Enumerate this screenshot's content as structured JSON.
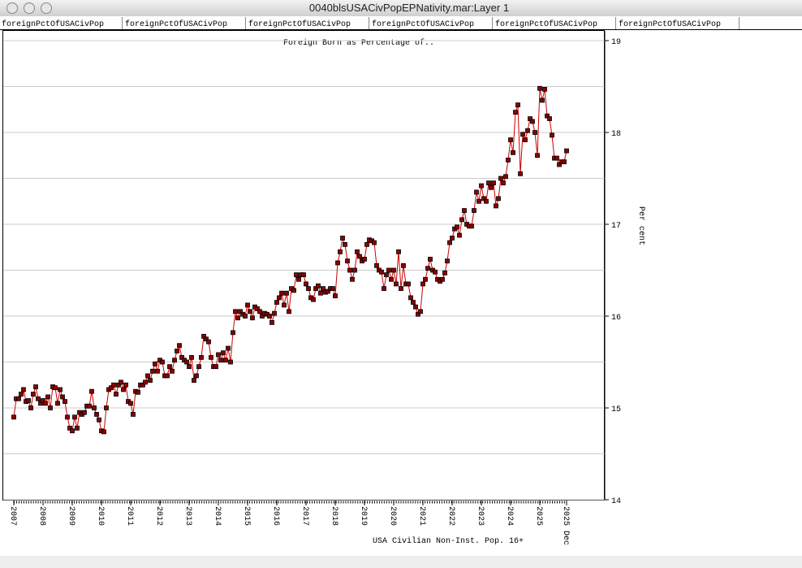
{
  "window_title": "0040blsUSACivPopEPNativity.mar:Layer 1",
  "tabs": [
    "foreignPctOfUSACivPop",
    "foreignPctOfUSACivPop",
    "foreignPctOfUSACivPop",
    "foreignPctOfUSACivPop",
    "foreignPctOfUSACivPop",
    "foreignPctOfUSACivPop"
  ],
  "chart_data": {
    "type": "line",
    "title": "Foreign Born as Percentage of..",
    "x_label": "USA Civilian Non-Inst. Pop. 16+",
    "y_label": "Per cent",
    "categories": [
      "2007",
      null,
      null,
      null,
      null,
      null,
      null,
      null,
      null,
      null,
      null,
      null,
      "2008",
      null,
      null,
      null,
      null,
      null,
      null,
      null,
      null,
      null,
      null,
      null,
      "2009",
      null,
      null,
      null,
      null,
      null,
      null,
      null,
      null,
      null,
      null,
      null,
      "2010",
      null,
      null,
      null,
      null,
      null,
      null,
      null,
      null,
      null,
      null,
      null,
      "2011",
      null,
      null,
      null,
      null,
      null,
      null,
      null,
      null,
      null,
      null,
      null,
      "2012",
      null,
      null,
      null,
      null,
      null,
      null,
      null,
      null,
      null,
      null,
      null,
      "2013",
      null,
      null,
      null,
      null,
      null,
      null,
      null,
      null,
      null,
      null,
      null,
      "2014",
      null,
      null,
      null,
      null,
      null,
      null,
      null,
      null,
      null,
      null,
      null,
      "2015",
      null,
      null,
      null,
      null,
      null,
      null,
      null,
      null,
      null,
      null,
      null,
      "2016",
      null,
      null,
      null,
      null,
      null,
      null,
      null,
      null,
      null,
      null,
      null,
      "2017",
      null,
      null,
      null,
      null,
      null,
      null,
      null,
      null,
      null,
      null,
      null,
      "2018",
      null,
      null,
      null,
      null,
      null,
      null,
      null,
      null,
      null,
      null,
      null,
      "2019",
      null,
      null,
      null,
      null,
      null,
      null,
      null,
      null,
      null,
      null,
      null,
      "2020",
      null,
      null,
      null,
      null,
      null,
      null,
      null,
      null,
      null,
      null,
      null,
      "2021",
      null,
      null,
      null,
      null,
      null,
      null,
      null,
      null,
      null,
      null,
      null,
      "2022",
      null,
      null,
      null,
      null,
      null,
      null,
      null,
      null,
      null,
      null,
      null,
      "2023",
      null,
      null,
      null,
      null,
      null,
      null,
      null,
      null,
      null,
      null,
      null,
      "2024",
      null,
      null,
      null,
      null,
      null,
      null,
      null,
      null,
      null,
      null,
      null,
      "2025",
      null,
      null,
      null,
      null,
      null,
      null,
      null,
      null,
      null,
      null,
      "2025 Dec"
    ],
    "series": [
      {
        "name": "foreignPctOfUSACivPop",
        "color": "#cc0000",
        "marker_color": "#8b0000",
        "values": [
          14.9,
          15.1,
          15.1,
          15.15,
          15.2,
          15.07,
          15.08,
          15.0,
          15.15,
          15.23,
          15.1,
          15.05,
          15.08,
          15.05,
          15.12,
          15.0,
          15.23,
          15.22,
          15.05,
          15.2,
          15.12,
          15.07,
          14.9,
          14.78,
          14.75,
          14.9,
          14.78,
          14.95,
          14.93,
          14.95,
          15.02,
          15.02,
          15.18,
          15.0,
          14.93,
          14.87,
          14.75,
          14.74,
          15.0,
          15.2,
          15.22,
          15.25,
          15.15,
          15.25,
          15.28,
          15.2,
          15.25,
          15.07,
          15.05,
          14.93,
          15.18,
          15.17,
          15.25,
          15.25,
          15.28,
          15.35,
          15.3,
          15.4,
          15.48,
          15.4,
          15.52,
          15.5,
          15.35,
          15.35,
          15.45,
          15.4,
          15.52,
          15.62,
          15.68,
          15.55,
          15.52,
          15.5,
          15.45,
          15.55,
          15.3,
          15.35,
          15.45,
          15.55,
          15.78,
          15.75,
          15.72,
          15.55,
          15.45,
          15.45,
          15.58,
          15.52,
          15.6,
          15.52,
          15.65,
          15.5,
          15.82,
          16.05,
          15.98,
          16.05,
          16.02,
          16.0,
          16.12,
          16.05,
          15.98,
          16.1,
          16.08,
          16.05,
          16.0,
          16.03,
          16.02,
          16.0,
          15.93,
          16.03,
          16.15,
          16.2,
          16.25,
          16.12,
          16.25,
          16.05,
          16.3,
          16.28,
          16.45,
          16.4,
          16.45,
          16.45,
          16.35,
          16.3,
          16.2,
          16.18,
          16.3,
          16.33,
          16.25,
          16.3,
          16.26,
          16.27,
          16.3,
          16.3,
          16.22,
          16.58,
          16.7,
          16.85,
          16.78,
          16.6,
          16.5,
          16.4,
          16.5,
          16.7,
          16.65,
          16.6,
          16.62,
          16.78,
          16.83,
          16.82,
          16.8,
          16.55,
          16.5,
          16.48,
          16.3,
          16.45,
          16.5,
          16.4,
          16.5,
          16.35,
          16.7,
          16.3,
          16.55,
          16.35,
          16.35,
          16.2,
          16.15,
          16.1,
          16.02,
          16.05,
          16.35,
          16.4,
          16.52,
          16.62,
          16.5,
          16.48,
          16.4,
          16.38,
          16.4,
          16.47,
          16.6,
          16.8,
          16.85,
          16.95,
          16.97,
          16.88,
          17.05,
          17.15,
          17.0,
          16.98,
          16.98,
          17.15,
          17.35,
          17.25,
          17.42,
          17.28,
          17.25,
          17.45,
          17.4,
          17.45,
          17.2,
          17.28,
          17.5,
          17.45,
          17.52,
          17.7,
          17.92,
          17.78,
          18.22,
          18.3,
          17.55,
          17.98,
          17.92,
          18.02,
          18.15,
          18.12,
          18.0,
          17.75,
          18.48,
          18.35,
          18.47,
          18.18,
          18.15,
          17.97,
          17.72,
          17.72,
          17.65,
          17.68,
          17.68,
          17.8
        ]
      }
    ],
    "ylim": [
      14,
      19
    ],
    "yticks": [
      14,
      15,
      16,
      17,
      18,
      19
    ],
    "y_minor_grid": [
      14.5,
      15.5,
      16.5,
      17.5,
      18.5
    ],
    "grid": true,
    "y_axis_side": "right"
  }
}
